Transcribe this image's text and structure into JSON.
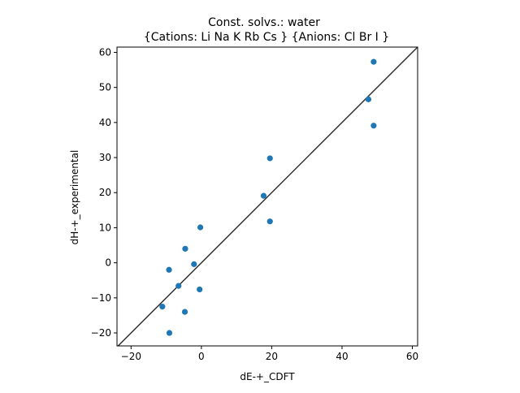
{
  "chart_data": {
    "type": "scatter",
    "title_line1": "Const. solvs.: water",
    "title_line2": "{Cations: Li Na K Rb Cs } {Anions: Cl Br I }",
    "xlabel": "dE-+_CDFT",
    "ylabel": "dH-+_experimental",
    "xlim": [
      -24,
      61.5
    ],
    "ylim": [
      -23.7,
      61.5
    ],
    "xticks": [
      -20,
      0,
      20,
      40,
      60
    ],
    "yticks": [
      -20,
      -10,
      0,
      10,
      20,
      30,
      40,
      50,
      60
    ],
    "grid": false,
    "identity_line": true,
    "marker_color": "#1f77b4",
    "line_color": "#333333",
    "points": [
      {
        "x": 49.0,
        "y": 57.3
      },
      {
        "x": 47.5,
        "y": 46.6
      },
      {
        "x": 49.0,
        "y": 39.1
      },
      {
        "x": 19.5,
        "y": 29.8
      },
      {
        "x": 17.7,
        "y": 19.1
      },
      {
        "x": 19.5,
        "y": 11.8
      },
      {
        "x": -0.3,
        "y": 10.1
      },
      {
        "x": -4.6,
        "y": 4.0
      },
      {
        "x": -2.1,
        "y": -0.4
      },
      {
        "x": -9.2,
        "y": -2.0
      },
      {
        "x": -6.5,
        "y": -6.6
      },
      {
        "x": -0.5,
        "y": -7.6
      },
      {
        "x": -11.1,
        "y": -12.5
      },
      {
        "x": -4.7,
        "y": -14.0
      },
      {
        "x": -9.1,
        "y": -20.0
      }
    ]
  }
}
